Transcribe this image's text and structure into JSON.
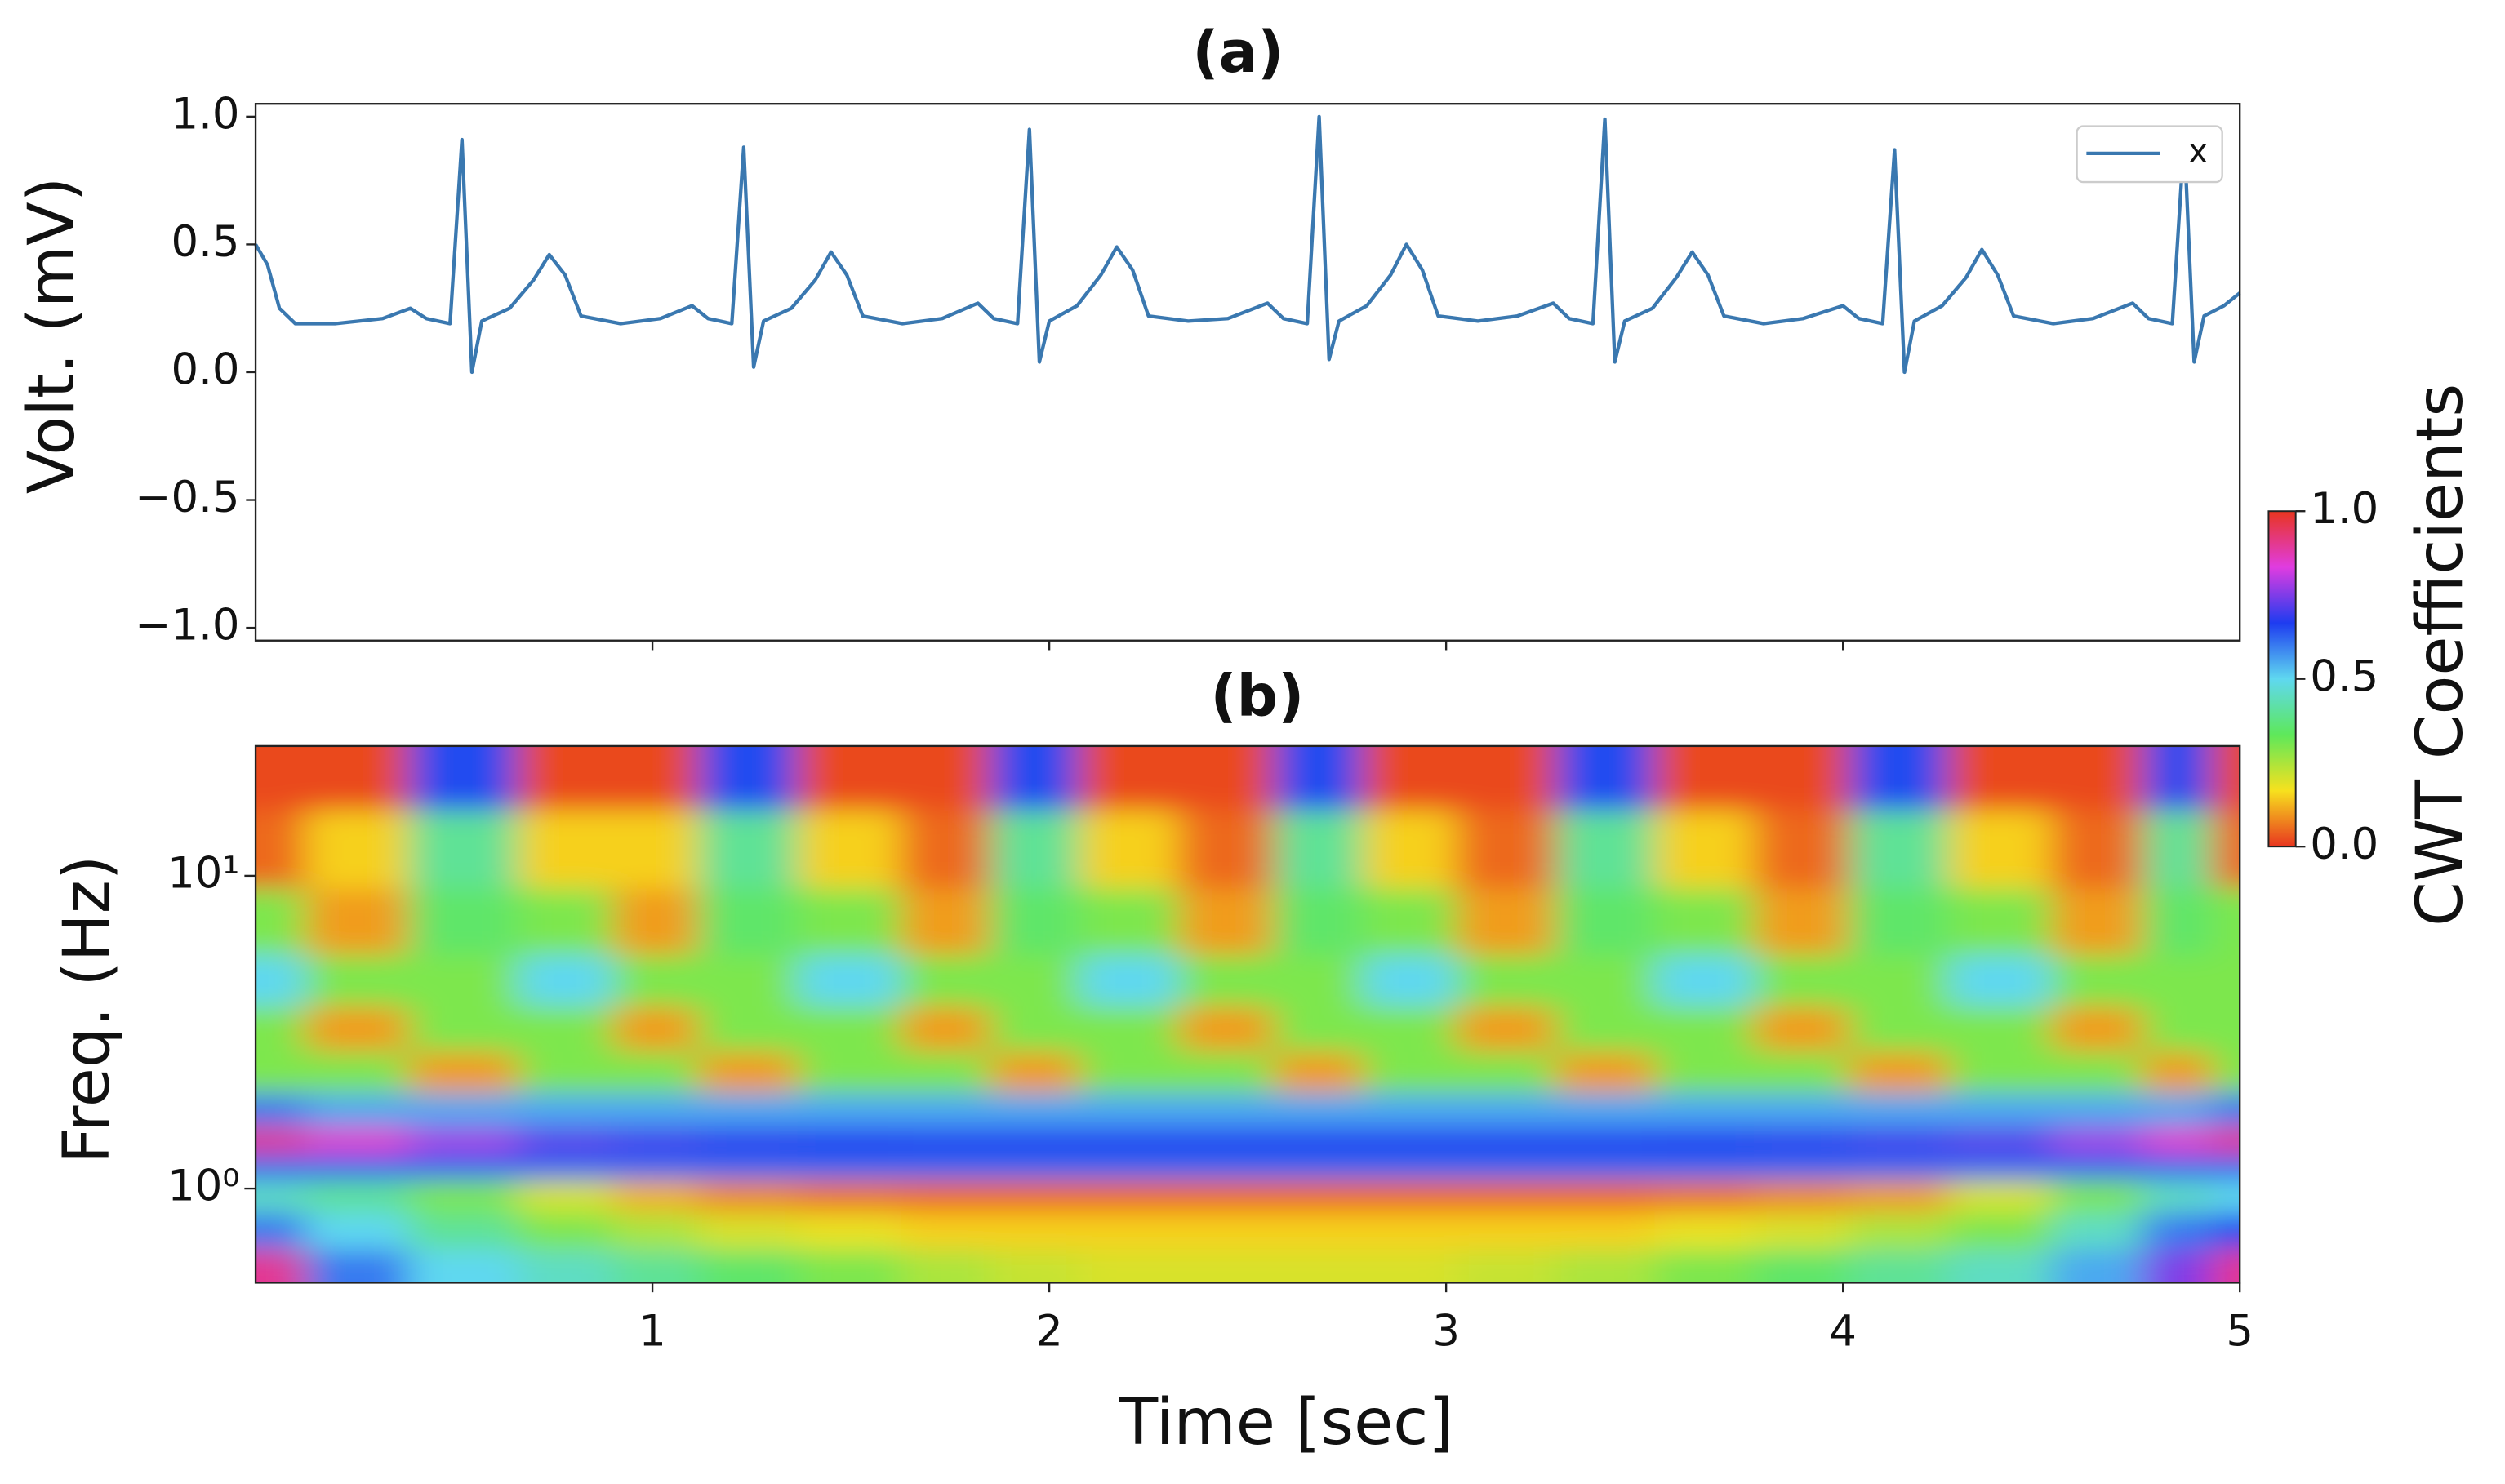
{
  "chart_data": [
    {
      "type": "line",
      "title": "(a)",
      "y_label": "Volt. (mV)",
      "xlim": [
        0,
        5
      ],
      "xticks": [
        1,
        2,
        3,
        4
      ],
      "ylim": [
        -1.05,
        1.05
      ],
      "yticks": [
        {
          "value": -1,
          "label": "−1.0"
        },
        {
          "value": -0.5,
          "label": "−0.5"
        },
        {
          "value": 0,
          "label": "0.0"
        },
        {
          "value": 0.5,
          "label": "0.5"
        },
        {
          "value": 1,
          "label": "1.0"
        }
      ],
      "legend": "upper right",
      "x": [
        0,
        0.03,
        0.06,
        0.1,
        0.2,
        0.32,
        0.39,
        0.43,
        0.49,
        0.52,
        0.545,
        0.57,
        0.64,
        0.7,
        0.74,
        0.78,
        0.82,
        0.92,
        1.02,
        1.1,
        1.14,
        1.2,
        1.23,
        1.255,
        1.28,
        1.35,
        1.41,
        1.45,
        1.49,
        1.53,
        1.63,
        1.73,
        1.82,
        1.86,
        1.92,
        1.95,
        1.975,
        2.0,
        2.07,
        2.13,
        2.17,
        2.21,
        2.25,
        2.35,
        2.45,
        2.55,
        2.59,
        2.65,
        2.68,
        2.705,
        2.73,
        2.8,
        2.86,
        2.9,
        2.94,
        2.98,
        3.08,
        3.18,
        3.27,
        3.31,
        3.37,
        3.4,
        3.425,
        3.45,
        3.52,
        3.58,
        3.62,
        3.66,
        3.7,
        3.8,
        3.9,
        4.0,
        4.04,
        4.1,
        4.13,
        4.155,
        4.18,
        4.25,
        4.31,
        4.35,
        4.39,
        4.43,
        4.53,
        4.63,
        4.73,
        4.77,
        4.83,
        4.86,
        4.885,
        4.91,
        4.96,
        5.0
      ],
      "series": [
        {
          "name": "x",
          "color": "#3a78b0",
          "values": [
            0.5,
            0.42,
            0.25,
            0.19,
            0.19,
            0.21,
            0.25,
            0.21,
            0.19,
            0.91,
            0.0,
            0.2,
            0.25,
            0.36,
            0.46,
            0.38,
            0.22,
            0.19,
            0.21,
            0.26,
            0.21,
            0.19,
            0.88,
            0.02,
            0.2,
            0.25,
            0.36,
            0.47,
            0.38,
            0.22,
            0.19,
            0.21,
            0.27,
            0.21,
            0.19,
            0.95,
            0.04,
            0.2,
            0.26,
            0.38,
            0.49,
            0.4,
            0.22,
            0.2,
            0.21,
            0.27,
            0.21,
            0.19,
            1.0,
            0.05,
            0.2,
            0.26,
            0.38,
            0.5,
            0.4,
            0.22,
            0.2,
            0.22,
            0.27,
            0.21,
            0.19,
            0.99,
            0.04,
            0.2,
            0.25,
            0.37,
            0.47,
            0.38,
            0.22,
            0.19,
            0.21,
            0.26,
            0.21,
            0.19,
            0.87,
            0.0,
            0.2,
            0.26,
            0.37,
            0.48,
            0.38,
            0.22,
            0.19,
            0.21,
            0.27,
            0.21,
            0.19,
            0.92,
            0.04,
            0.22,
            0.26,
            0.31
          ]
        }
      ]
    },
    {
      "type": "heatmap",
      "title": "(b)",
      "x_label": "Time [sec]",
      "y_label": "Freq. (Hz)",
      "xlim": [
        0,
        5
      ],
      "xticks": [
        1,
        2,
        3,
        4,
        5
      ],
      "ylim": [
        0.5,
        26
      ],
      "y_scale": "log",
      "yticks": [
        {
          "value": 1,
          "label": "10⁰"
        },
        {
          "value": 10,
          "label": "10¹"
        }
      ],
      "x": [
        0,
        0.25,
        0.52,
        0.8,
        1.0,
        1.23,
        1.5,
        1.75,
        1.95,
        2.2,
        2.45,
        2.68,
        2.9,
        3.15,
        3.4,
        3.65,
        3.9,
        4.13,
        4.4,
        4.65,
        4.86,
        5.0
      ],
      "y": [
        0.55,
        0.75,
        0.95,
        1.2,
        1.4,
        1.8,
        2.3,
        3.3,
        4.5,
        7,
        12,
        22
      ],
      "z": [
        [
          0.9,
          0.6,
          0.5,
          0.45,
          0.4,
          0.35,
          0.3,
          0.25,
          0.22,
          0.2,
          0.2,
          0.2,
          0.2,
          0.22,
          0.25,
          0.3,
          0.35,
          0.4,
          0.45,
          0.55,
          0.75,
          0.9
        ],
        [
          0.6,
          0.5,
          0.4,
          0.3,
          0.25,
          0.2,
          0.18,
          0.15,
          0.15,
          0.15,
          0.15,
          0.15,
          0.15,
          0.15,
          0.15,
          0.18,
          0.2,
          0.25,
          0.3,
          0.45,
          0.6,
          0.65
        ],
        [
          0.45,
          0.4,
          0.3,
          0.2,
          0.12,
          0.08,
          0.06,
          0.05,
          0.05,
          0.05,
          0.05,
          0.05,
          0.05,
          0.05,
          0.05,
          0.06,
          0.08,
          0.1,
          0.2,
          0.3,
          0.45,
          0.5
        ],
        [
          0.62,
          0.62,
          0.62,
          0.62,
          0.62,
          0.62,
          0.62,
          0.62,
          0.62,
          0.62,
          0.62,
          0.62,
          0.62,
          0.62,
          0.62,
          0.62,
          0.62,
          0.62,
          0.62,
          0.62,
          0.62,
          0.62
        ],
        [
          0.9,
          0.85,
          0.78,
          0.72,
          0.7,
          0.68,
          0.67,
          0.66,
          0.66,
          0.66,
          0.66,
          0.66,
          0.66,
          0.66,
          0.66,
          0.67,
          0.68,
          0.7,
          0.72,
          0.78,
          0.85,
          0.9
        ],
        [
          0.6,
          0.55,
          0.55,
          0.55,
          0.55,
          0.55,
          0.55,
          0.55,
          0.55,
          0.55,
          0.55,
          0.55,
          0.55,
          0.55,
          0.55,
          0.55,
          0.55,
          0.55,
          0.55,
          0.55,
          0.55,
          0.6
        ],
        [
          0.3,
          0.3,
          0.1,
          0.3,
          0.3,
          0.1,
          0.3,
          0.3,
          0.1,
          0.3,
          0.3,
          0.1,
          0.3,
          0.3,
          0.1,
          0.3,
          0.3,
          0.1,
          0.3,
          0.3,
          0.1,
          0.3
        ],
        [
          0.3,
          0.1,
          0.3,
          0.3,
          0.1,
          0.3,
          0.3,
          0.1,
          0.3,
          0.3,
          0.1,
          0.3,
          0.3,
          0.1,
          0.3,
          0.3,
          0.1,
          0.3,
          0.3,
          0.1,
          0.3,
          0.3
        ],
        [
          0.5,
          0.3,
          0.3,
          0.5,
          0.3,
          0.3,
          0.5,
          0.3,
          0.3,
          0.5,
          0.3,
          0.3,
          0.5,
          0.3,
          0.3,
          0.5,
          0.3,
          0.3,
          0.5,
          0.3,
          0.3,
          0.3
        ],
        [
          0.3,
          0.1,
          0.35,
          0.3,
          0.1,
          0.35,
          0.3,
          0.1,
          0.35,
          0.3,
          0.1,
          0.35,
          0.3,
          0.1,
          0.35,
          0.3,
          0.1,
          0.35,
          0.3,
          0.1,
          0.35,
          0.3
        ],
        [
          0.05,
          0.15,
          0.4,
          0.15,
          0.15,
          0.4,
          0.15,
          0.05,
          0.4,
          0.15,
          0.05,
          0.4,
          0.15,
          0.05,
          0.4,
          0.15,
          0.05,
          0.4,
          0.15,
          0.05,
          0.4,
          0.05
        ],
        [
          0.02,
          0.02,
          0.65,
          0.02,
          0.02,
          0.65,
          0.02,
          0.02,
          0.65,
          0.02,
          0.02,
          0.65,
          0.02,
          0.02,
          0.65,
          0.02,
          0.02,
          0.65,
          0.02,
          0.02,
          0.65,
          0.02
        ]
      ],
      "colormap": [
        "#e8351f",
        "#f7e11e",
        "#5ee85a",
        "#5fd8f0",
        "#1e3cf0",
        "#e03ce0",
        "#e8351f"
      ],
      "colorbar": {
        "label": "CWT Coefficients",
        "lim": [
          0,
          1
        ],
        "ticks": [
          {
            "value": 0,
            "label": "0.0"
          },
          {
            "value": 0.5,
            "label": "0.5"
          },
          {
            "value": 1,
            "label": "1.0"
          }
        ]
      }
    }
  ]
}
